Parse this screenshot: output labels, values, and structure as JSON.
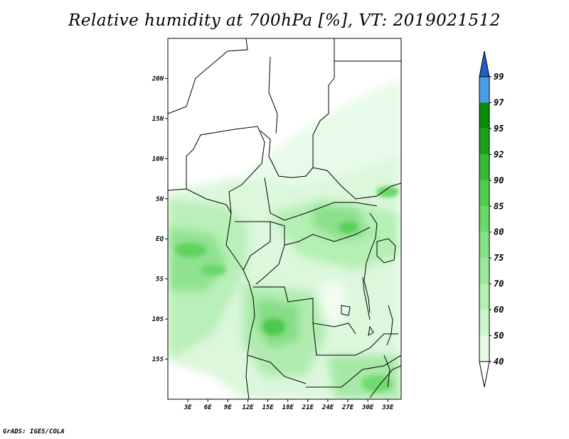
{
  "title": "Relative humidity at 700hPa [%], VT: 2019021512",
  "credit": "GrADS: IGES/COLA",
  "map": {
    "lat_ticks": [
      {
        "value": 20,
        "label": "20N"
      },
      {
        "value": 15,
        "label": "15N"
      },
      {
        "value": 10,
        "label": "10N"
      },
      {
        "value": 5,
        "label": "5N"
      },
      {
        "value": 0,
        "label": "EQ"
      },
      {
        "value": -5,
        "label": "5S"
      },
      {
        "value": -10,
        "label": "10S"
      },
      {
        "value": -15,
        "label": "15S"
      }
    ],
    "lon_ticks": [
      {
        "value": 3,
        "label": "3E"
      },
      {
        "value": 6,
        "label": "6E"
      },
      {
        "value": 9,
        "label": "9E"
      },
      {
        "value": 12,
        "label": "12E"
      },
      {
        "value": 15,
        "label": "15E"
      },
      {
        "value": 18,
        "label": "18E"
      },
      {
        "value": 21,
        "label": "21E"
      },
      {
        "value": 24,
        "label": "24E"
      },
      {
        "value": 27,
        "label": "27E"
      },
      {
        "value": 30,
        "label": "30E"
      },
      {
        "value": 33,
        "label": "33E"
      }
    ],
    "lon_range": [
      0,
      35
    ],
    "lat_range": [
      -20,
      25
    ]
  },
  "colorbar": {
    "levels": [
      {
        "label": "40",
        "color": "#e6fbe6"
      },
      {
        "label": "50",
        "color": "#cdf5cd"
      },
      {
        "label": "60",
        "color": "#b4efb4"
      },
      {
        "label": "70",
        "color": "#9be89b"
      },
      {
        "label": "75",
        "color": "#82e182"
      },
      {
        "label": "80",
        "color": "#69d969"
      },
      {
        "label": "85",
        "color": "#50cc50"
      },
      {
        "label": "90",
        "color": "#37b837"
      },
      {
        "label": "92",
        "color": "#1ea01e"
      },
      {
        "label": "95",
        "color": "#0a8c0a"
      },
      {
        "label": "97",
        "color": "#4a9de8"
      },
      {
        "label": "99",
        "color": "#1e6fd6"
      }
    ],
    "under_color": "#ffffff",
    "over_color": "#1f5fc9"
  }
}
